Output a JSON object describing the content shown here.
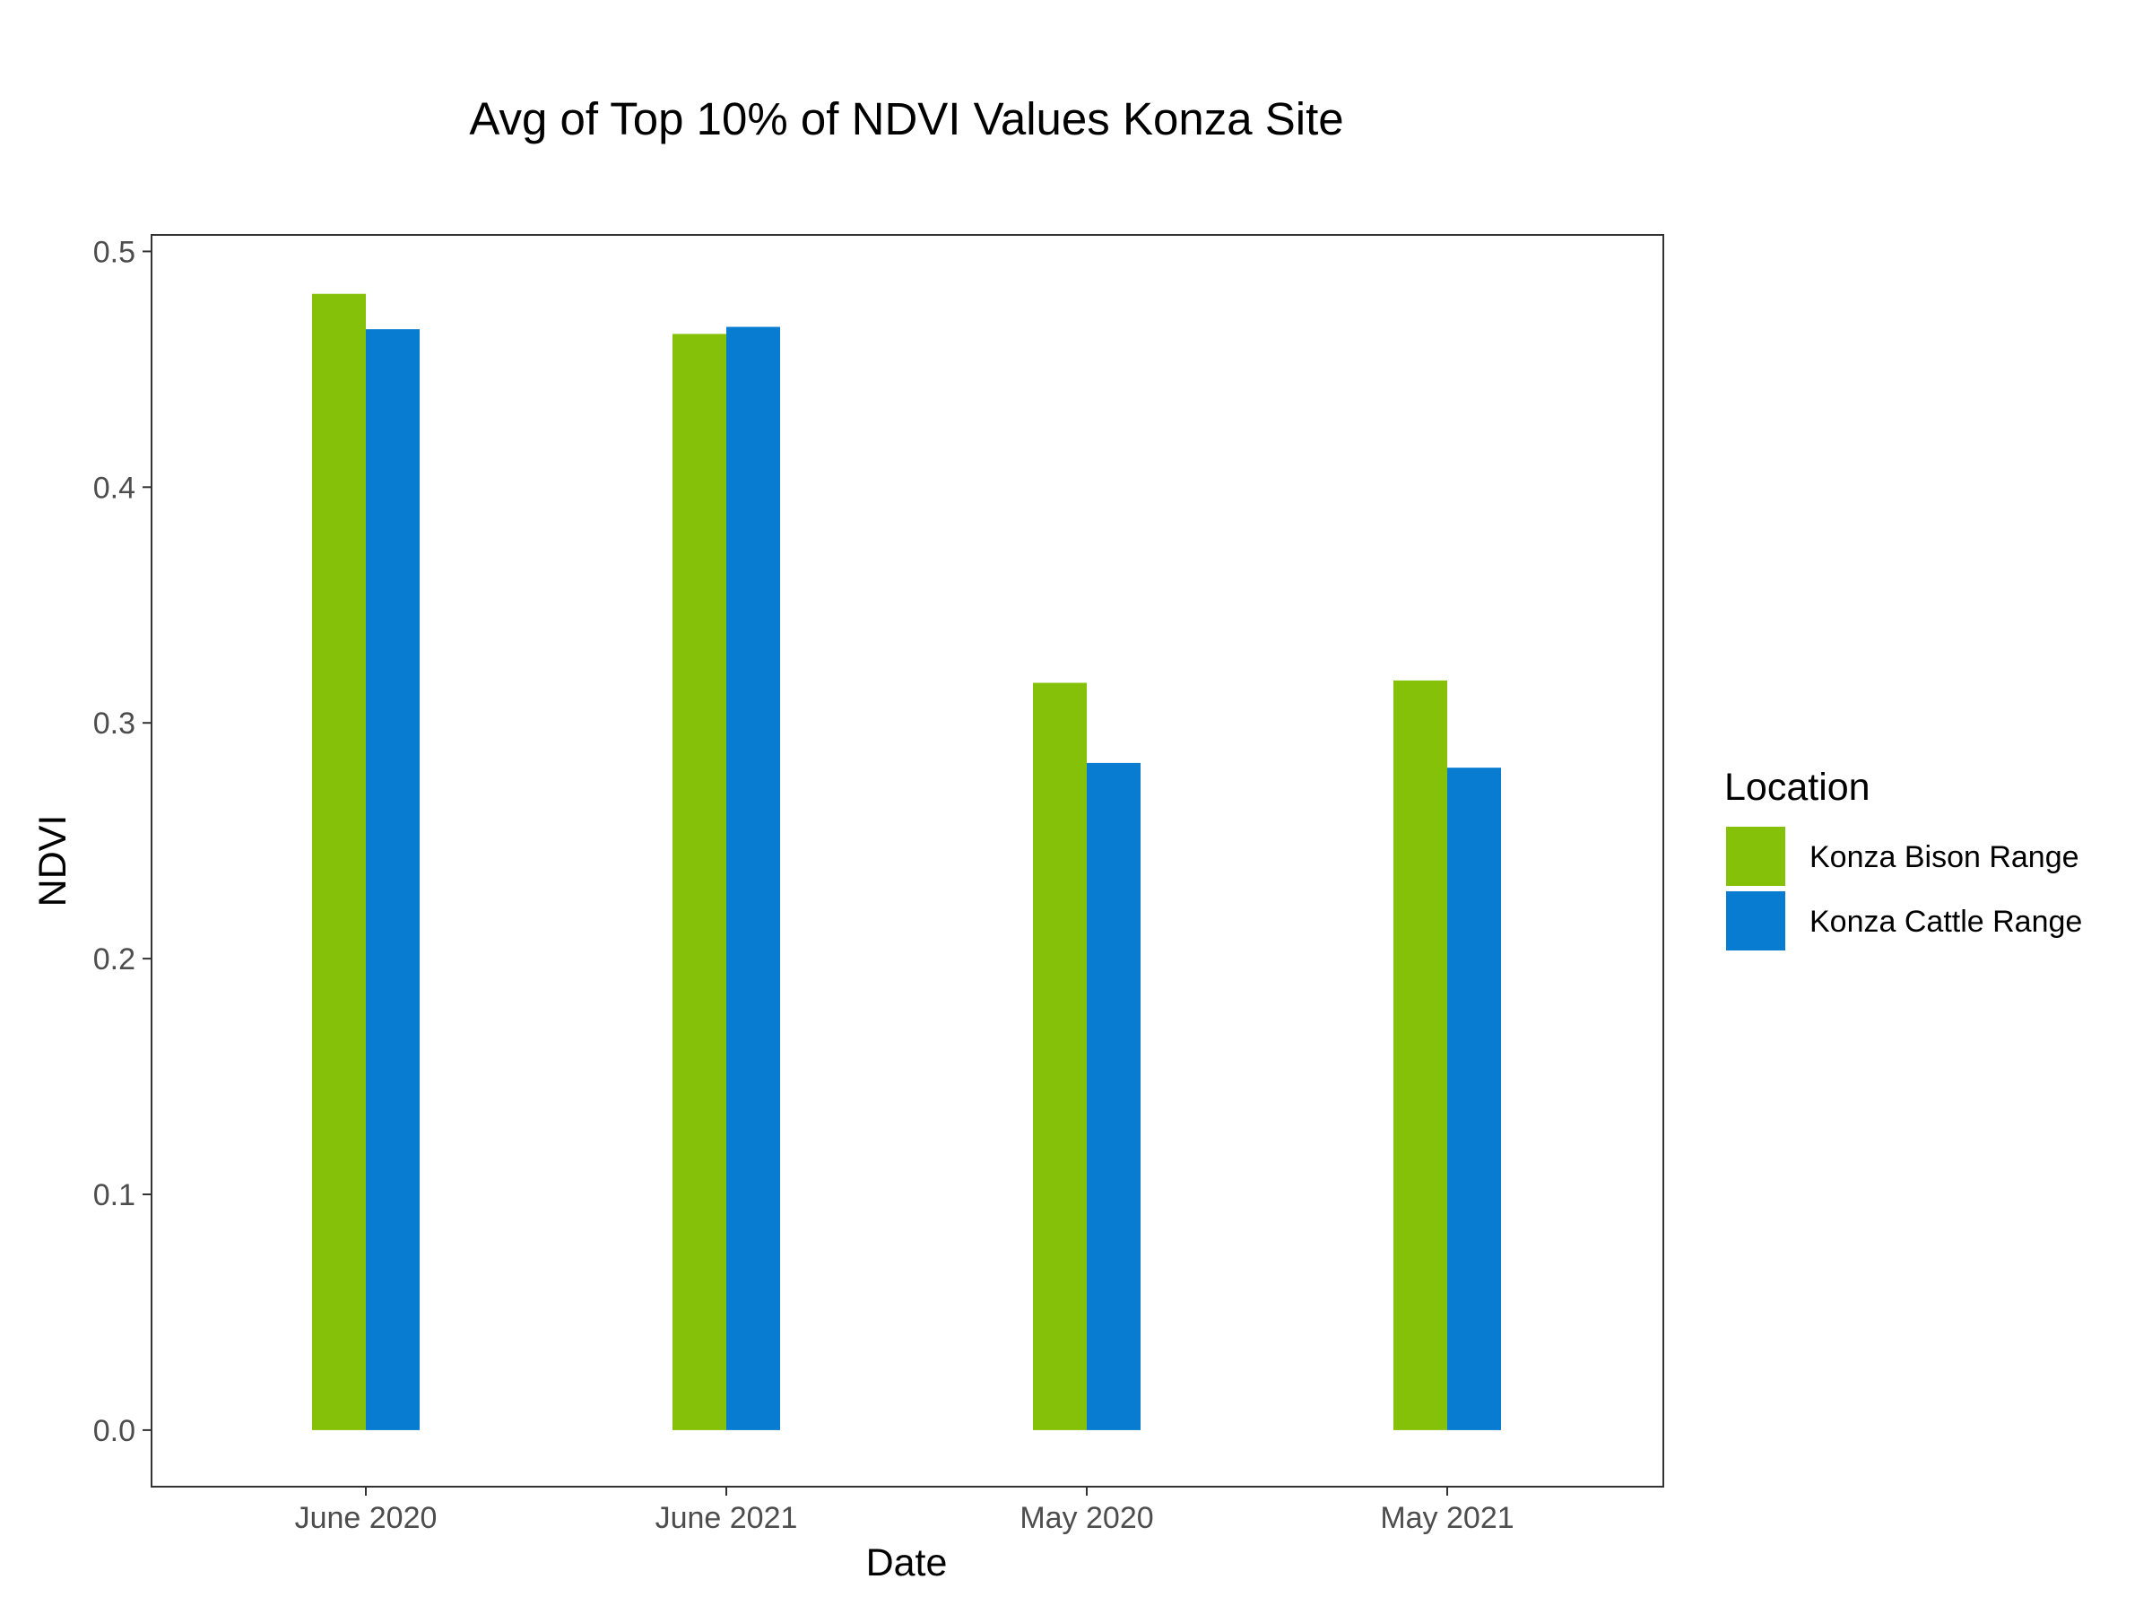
{
  "chart_data": {
    "type": "bar",
    "title": "Avg of Top 10% of NDVI Values Konza Site",
    "xlabel": "Date",
    "ylabel": "NDVI",
    "categories": [
      "June 2020",
      "June 2021",
      "May 2020",
      "May 2021"
    ],
    "series": [
      {
        "name": "Konza Bison Range",
        "color": "#84c108",
        "values": [
          0.482,
          0.465,
          0.317,
          0.318
        ]
      },
      {
        "name": "Konza Cattle Range",
        "color": "#077cd1",
        "values": [
          0.467,
          0.468,
          0.283,
          0.281
        ]
      }
    ],
    "ylim": [
      -0.024,
      0.507
    ],
    "yticks": [
      0.0,
      0.1,
      0.2,
      0.3,
      0.4,
      0.5
    ],
    "ytick_labels": [
      "0.0",
      "0.1",
      "0.2",
      "0.3",
      "0.4",
      "0.5"
    ],
    "grid": false,
    "legend": {
      "title": "Location",
      "position": "right"
    }
  }
}
